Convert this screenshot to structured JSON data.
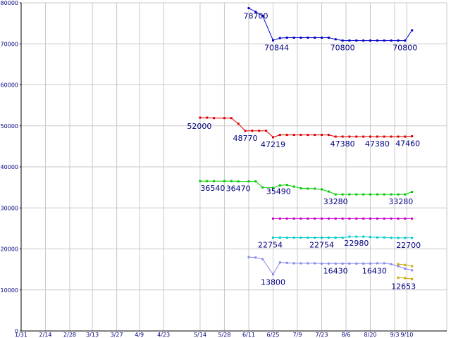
{
  "chart_data": {
    "type": "line",
    "title": "",
    "xlabel": "",
    "ylabel": "",
    "ylim": [
      0,
      80000
    ],
    "yticks": [
      0,
      10000,
      20000,
      30000,
      40000,
      50000,
      60000,
      70000,
      80000
    ],
    "ytick_labels": [
      "0",
      "10000",
      "20000",
      "30000",
      "40000",
      "50000",
      "60000",
      "70000",
      "80000"
    ],
    "xtick_labels": [
      "1/31",
      "2/14",
      "2/28",
      "3/13",
      "3/27",
      "4/9",
      "4/23",
      "5/14",
      "5/28",
      "6/11",
      "6/25",
      "7/9",
      "7/23",
      "8/6",
      "8/20",
      "9/3",
      "9/10"
    ],
    "grid": true,
    "legend": "none",
    "x_domain": [
      0,
      245
    ],
    "tick_days": [
      0,
      14,
      28,
      41,
      55,
      68,
      82,
      103,
      117,
      131,
      145,
      159,
      173,
      187,
      201,
      215,
      222
    ],
    "series": [
      {
        "color": "#0000cc",
        "x": [
          131,
          135,
          139,
          145,
          149,
          153,
          157,
          161,
          165,
          169,
          173,
          177,
          181,
          185,
          189,
          193,
          197,
          201,
          205,
          209,
          213,
          217,
          221,
          225
        ],
        "y": [
          78700,
          77800,
          76800,
          70844,
          71400,
          71500,
          71500,
          71500,
          71500,
          71500,
          71500,
          71500,
          71100,
          70800,
          70800,
          70800,
          70800,
          70800,
          70800,
          70800,
          70800,
          70800,
          70800,
          73300
        ]
      },
      {
        "color": "#dd0000",
        "x": [
          103,
          107,
          111,
          117,
          121,
          125,
          129,
          133,
          137,
          141,
          145,
          149,
          153,
          157,
          161,
          165,
          169,
          173,
          177,
          181,
          185,
          189,
          193,
          197,
          201,
          205,
          209,
          213,
          217,
          221,
          225
        ],
        "y": [
          52000,
          52000,
          51900,
          51900,
          51900,
          50500,
          48770,
          48800,
          48800,
          48800,
          47219,
          47800,
          47800,
          47800,
          47800,
          47800,
          47800,
          47800,
          47800,
          47380,
          47380,
          47380,
          47380,
          47380,
          47380,
          47380,
          47380,
          47380,
          47380,
          47380,
          47460
        ]
      },
      {
        "color": "#00cc00",
        "x": [
          103,
          107,
          111,
          117,
          121,
          125,
          131,
          135,
          139,
          145,
          149,
          153,
          157,
          161,
          165,
          169,
          173,
          177,
          181,
          185,
          189,
          193,
          197,
          201,
          205,
          209,
          213,
          217,
          221,
          225
        ],
        "y": [
          36540,
          36540,
          36540,
          36540,
          36540,
          36470,
          36470,
          36470,
          35000,
          34900,
          35490,
          35600,
          35200,
          34800,
          34700,
          34700,
          34500,
          34000,
          33280,
          33280,
          33280,
          33280,
          33280,
          33280,
          33280,
          33280,
          33280,
          33280,
          33280,
          33900
        ]
      },
      {
        "color": "#cc00cc",
        "x": [
          145,
          149,
          153,
          157,
          161,
          165,
          169,
          173,
          177,
          181,
          185,
          189,
          193,
          197,
          201,
          205,
          209,
          213,
          217,
          221,
          225
        ],
        "y": [
          27400,
          27400,
          27400,
          27400,
          27400,
          27400,
          27400,
          27400,
          27400,
          27400,
          27400,
          27400,
          27400,
          27400,
          27400,
          27400,
          27400,
          27400,
          27400,
          27400,
          27400
        ]
      },
      {
        "color": "#00cccc",
        "x": [
          145,
          149,
          153,
          157,
          161,
          165,
          169,
          173,
          177,
          181,
          185,
          189,
          193,
          197,
          201,
          205,
          209,
          213,
          217,
          221,
          225
        ],
        "y": [
          22754,
          22754,
          22754,
          22754,
          22754,
          22754,
          22754,
          22754,
          22754,
          22754,
          22754,
          22980,
          22980,
          22980,
          22900,
          22800,
          22800,
          22700,
          22700,
          22700,
          22700
        ]
      },
      {
        "color": "#8888ee",
        "x": [
          131,
          135,
          139,
          145,
          149,
          153,
          157,
          161,
          165,
          169,
          173,
          177,
          181,
          185,
          189,
          193,
          197,
          201,
          205,
          209,
          213,
          217,
          221,
          225
        ],
        "y": [
          18000,
          17900,
          17500,
          13800,
          16700,
          16600,
          16500,
          16500,
          16500,
          16500,
          16430,
          16430,
          16430,
          16430,
          16430,
          16430,
          16430,
          16430,
          16500,
          16500,
          16300,
          15800,
          15200,
          14800
        ]
      },
      {
        "color": "#ccaa00",
        "x": [
          217,
          221,
          225
        ],
        "y": [
          16300,
          16100,
          15800
        ]
      },
      {
        "color": "#ccaa00",
        "x": [
          217,
          221,
          225
        ],
        "y": [
          13000,
          12900,
          12653
        ]
      }
    ],
    "annotations": [
      {
        "text": "78700",
        "x": 131,
        "y": 78700,
        "dx": 10,
        "dy": 15
      },
      {
        "text": "70844",
        "x": 145,
        "y": 70844,
        "dx": 5,
        "dy": 14
      },
      {
        "text": "70800",
        "x": 185,
        "y": 70800,
        "dx": 0,
        "dy": 14
      },
      {
        "text": "70800",
        "x": 221,
        "y": 70800,
        "dx": 0,
        "dy": 14
      },
      {
        "text": "52000",
        "x": 103,
        "y": 52000,
        "dx": -1,
        "dy": 16
      },
      {
        "text": "48770",
        "x": 129,
        "y": 48770,
        "dx": 0,
        "dy": 14
      },
      {
        "text": "47219",
        "x": 145,
        "y": 47219,
        "dx": 0,
        "dy": 14
      },
      {
        "text": "47380",
        "x": 185,
        "y": 47380,
        "dx": 0,
        "dy": 14
      },
      {
        "text": "47380",
        "x": 205,
        "y": 47380,
        "dx": 0,
        "dy": 14
      },
      {
        "text": "47460",
        "x": 225,
        "y": 47460,
        "dx": -6,
        "dy": 14
      },
      {
        "text": "36540",
        "x": 103,
        "y": 36540,
        "dx": 18,
        "dy": 14
      },
      {
        "text": "36470",
        "x": 125,
        "y": 36470,
        "dx": 0,
        "dy": 14
      },
      {
        "text": "35490",
        "x": 149,
        "y": 35490,
        "dx": -2,
        "dy": 12
      },
      {
        "text": "33280",
        "x": 181,
        "y": 33280,
        "dx": 0,
        "dy": 14
      },
      {
        "text": "33280",
        "x": 221,
        "y": 33280,
        "dx": -6,
        "dy": 14
      },
      {
        "text": "22754",
        "x": 145,
        "y": 22754,
        "dx": -4,
        "dy": 14
      },
      {
        "text": "22754",
        "x": 173,
        "y": 22754,
        "dx": 0,
        "dy": 14
      },
      {
        "text": "22980",
        "x": 189,
        "y": 22980,
        "dx": 10,
        "dy": 13
      },
      {
        "text": "22700",
        "x": 225,
        "y": 22700,
        "dx": -5,
        "dy": 14
      },
      {
        "text": "13800",
        "x": 145,
        "y": 13800,
        "dx": 0,
        "dy": 15
      },
      {
        "text": "16430",
        "x": 181,
        "y": 16430,
        "dx": 0,
        "dy": 14
      },
      {
        "text": "16430",
        "x": 205,
        "y": 16430,
        "dx": -4,
        "dy": 14
      },
      {
        "text": "12653",
        "x": 225,
        "y": 12653,
        "dx": -12,
        "dy": 14
      }
    ]
  }
}
